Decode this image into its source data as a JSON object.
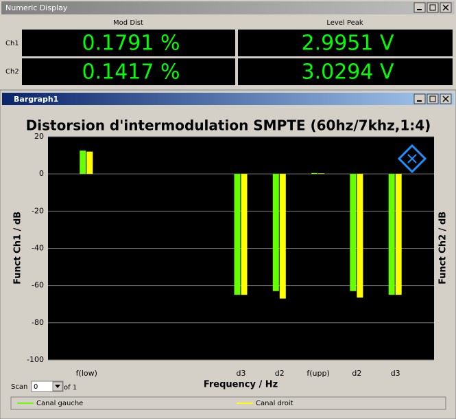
{
  "numeric_display": {
    "title": "Numeric Display",
    "columns": [
      "Mod Dist",
      "Level Peak"
    ],
    "rows": [
      {
        "label": "Ch1",
        "cells": [
          "0.1791 %",
          "2.9951 V"
        ]
      },
      {
        "label": "Ch2",
        "cells": [
          "0.1417 %",
          "3.0294 V"
        ]
      }
    ]
  },
  "bargraph_window": {
    "title": "Bargraph1",
    "scan_label": "Scan",
    "scan_value": "0",
    "scan_of": "of 1"
  },
  "chart_data": {
    "type": "bar",
    "title": "Distorsion d'intermodulation SMPTE (60hz/7khz,1:4)",
    "xlabel": "Frequency / Hz",
    "ylabel": "Funct Ch1 / dB",
    "y2label": "Funct Ch2 / dB",
    "categories": [
      "f(low)",
      null,
      null,
      null,
      "d3",
      "d2",
      "f(upp)",
      "d2",
      "d3"
    ],
    "series": [
      {
        "name": "Canal gauche",
        "color": "#66ff00",
        "values": [
          12.5,
          null,
          null,
          null,
          -65,
          -63,
          0.5,
          -63,
          -65
        ]
      },
      {
        "name": "Canal droit",
        "color": "#ffff00",
        "values": [
          12,
          null,
          null,
          null,
          -65,
          -67,
          0.3,
          -66.5,
          -65
        ]
      }
    ],
    "ylim": [
      -100,
      20
    ],
    "yticks": [
      -100,
      -80,
      -60,
      -40,
      -20,
      0,
      20
    ],
    "grid": true
  }
}
